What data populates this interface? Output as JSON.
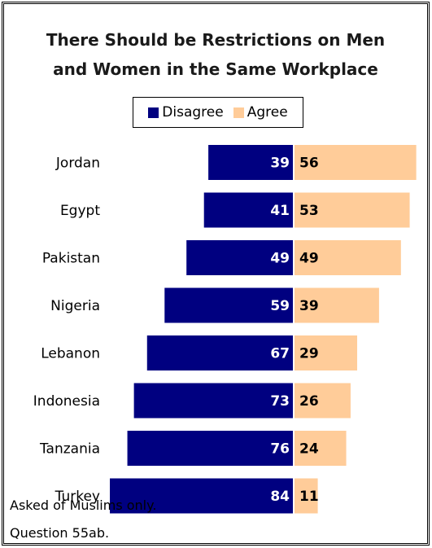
{
  "chart_data": {
    "type": "bar",
    "title_lines": [
      "There Should be Restrictions on Men",
      "and Women in the Same Workplace"
    ],
    "categories": [
      "Jordan",
      "Egypt",
      "Pakistan",
      "Nigeria",
      "Lebanon",
      "Indonesia",
      "Tanzania",
      "Turkey"
    ],
    "series": [
      {
        "name": "Disagree",
        "values": [
          39,
          41,
          49,
          59,
          67,
          73,
          76,
          84
        ],
        "color": "#000080"
      },
      {
        "name": "Agree",
        "values": [
          56,
          53,
          49,
          39,
          29,
          26,
          24,
          11
        ],
        "color": "#FFCC99"
      }
    ],
    "legend_position": "top-center",
    "orientation": "diverging-horizontal"
  },
  "notes": [
    "Asked of Muslims only.",
    "Question 55ab."
  ]
}
